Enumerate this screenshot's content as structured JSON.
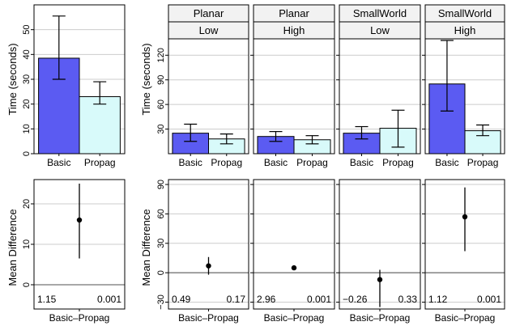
{
  "colors": {
    "basic": "#5b5bf2",
    "propag": "#d8fafa",
    "grid": "#cccccc",
    "strip": "#f2f2f2",
    "zero_line": "#8c8c8c"
  },
  "ylabels": {
    "time": "Time (seconds)",
    "diff": "Mean Difference"
  },
  "chart_data": [
    {
      "type": "bar",
      "panel": "left-top",
      "categories": [
        "Basic",
        "Propag"
      ],
      "values": [
        38.5,
        23
      ],
      "err_low": [
        30,
        20
      ],
      "err_high": [
        55.5,
        29
      ],
      "ylim": [
        0,
        60
      ],
      "yticks": [
        0,
        10,
        20,
        30,
        40,
        50
      ],
      "grid": true
    },
    {
      "type": "scatter",
      "panel": "left-bottom",
      "categories": [
        "Basic–Propag"
      ],
      "values": [
        16
      ],
      "err_low": [
        6.5
      ],
      "err_high": [
        25
      ],
      "ylim": [
        -6,
        26
      ],
      "yticks": [
        0,
        10,
        20
      ],
      "grid": true,
      "annotations": [
        "1.15",
        "0.001"
      ]
    },
    {
      "type": "bar",
      "panel": "right-top",
      "categories": [
        "Basic",
        "Propag"
      ],
      "ylim": [
        0,
        140
      ],
      "yticks": [
        30,
        60,
        90,
        120
      ],
      "grid": true,
      "facets": [
        {
          "strip1": "Planar",
          "strip2": "Low",
          "values": [
            25,
            18
          ],
          "err_low": [
            15,
            12
          ],
          "err_high": [
            36,
            24
          ]
        },
        {
          "strip1": "Planar",
          "strip2": "High",
          "values": [
            21,
            17
          ],
          "err_low": [
            15,
            12
          ],
          "err_high": [
            27,
            22
          ]
        },
        {
          "strip1": "SmallWorld",
          "strip2": "Low",
          "values": [
            25,
            31
          ],
          "err_low": [
            18,
            8
          ],
          "err_high": [
            33,
            53
          ]
        },
        {
          "strip1": "SmallWorld",
          "strip2": "High",
          "values": [
            85,
            28
          ],
          "err_low": [
            52,
            22
          ],
          "err_high": [
            138,
            35
          ]
        }
      ]
    },
    {
      "type": "scatter",
      "panel": "right-bottom",
      "categories": [
        "Basic–Propag"
      ],
      "ylim": [
        -37,
        95
      ],
      "yticks": [
        -30,
        0,
        30,
        60,
        90
      ],
      "grid": true,
      "facets": [
        {
          "value": 7,
          "err_low": -2,
          "err_high": 16,
          "ann_left": "0.49",
          "ann_right": "0.17"
        },
        {
          "value": 5,
          "err_low": null,
          "err_high": null,
          "ann_left": "2.96",
          "ann_right": "0.001"
        },
        {
          "value": -7,
          "err_low": -35,
          "err_high": 3,
          "ann_left": "−0.26",
          "ann_right": "0.33"
        },
        {
          "value": 57,
          "err_low": 22,
          "err_high": 87,
          "ann_left": "1.12",
          "ann_right": "0.001"
        }
      ]
    }
  ]
}
